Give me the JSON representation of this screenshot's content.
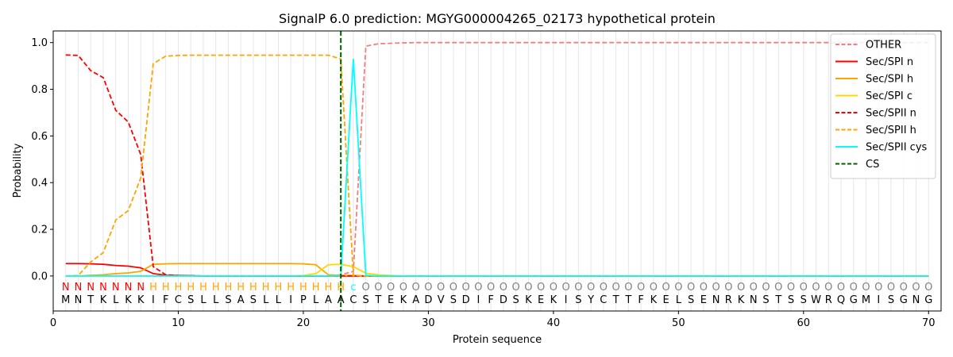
{
  "chart_data": {
    "type": "line",
    "title": "SignalP 6.0 prediction: MGYG000004265_02173 hypothetical protein",
    "xlabel": "Protein sequence",
    "ylabel": "Probability",
    "xlim": [
      0,
      71
    ],
    "ylim": [
      -0.15,
      1.05
    ],
    "xticks": [
      0,
      10,
      20,
      30,
      40,
      50,
      60,
      70
    ],
    "yticks": [
      0.0,
      0.2,
      0.4,
      0.6,
      0.8,
      1.0
    ],
    "grid": "vertical lines at each residue",
    "legend_position": "top-right",
    "sequence": "MNTKLKKIFCSLLSASLLIPLAACSTEKADVSDIFDSKEKISYCTTFKELSENRKNSTSSWRQGMISGNG",
    "prediction": "NNNNNNNHHHHHHHHHHHHHHHHcOOOOOOOOOOOOOOOOOOOOOOOOOOOOOOOOOOOOOOOOOOOOOO",
    "prediction_colors": {
      "N": "#ff0000",
      "H": "#ffa500",
      "c": "#00ffff",
      "O": "#808080"
    },
    "cleavage_site": 23,
    "series": [
      {
        "name": "OTHER",
        "color": "#f08080",
        "dash": true,
        "values": [
          0,
          0,
          0,
          0,
          0,
          0,
          0,
          0,
          0,
          0,
          0,
          0,
          0,
          0,
          0,
          0,
          0,
          0,
          0,
          0,
          0,
          0,
          0.005,
          0.02,
          0.985,
          0.995,
          0.997,
          0.999,
          1,
          1,
          1,
          1,
          1,
          1,
          1,
          1,
          1,
          1,
          1,
          1,
          1,
          1,
          1,
          1,
          1,
          1,
          1,
          1,
          1,
          1,
          1,
          1,
          1,
          1,
          1,
          1,
          1,
          1,
          1,
          1,
          1,
          1,
          1,
          1,
          1,
          1,
          1,
          1,
          1,
          1
        ]
      },
      {
        "name": "Sec/SPI n",
        "color": "#ff0000",
        "dash": false,
        "values": [
          0.053,
          0.053,
          0.052,
          0.05,
          0.045,
          0.042,
          0.035,
          0.01,
          0.003,
          0.002,
          0.001,
          0,
          0,
          0,
          0,
          0,
          0,
          0,
          0,
          0,
          0,
          0,
          0,
          0,
          0,
          0,
          0,
          0,
          0,
          0,
          0,
          0,
          0,
          0,
          0,
          0,
          0,
          0,
          0,
          0,
          0,
          0,
          0,
          0,
          0,
          0,
          0,
          0,
          0,
          0,
          0,
          0,
          0,
          0,
          0,
          0,
          0,
          0,
          0,
          0,
          0,
          0,
          0,
          0,
          0,
          0,
          0,
          0,
          0,
          0
        ]
      },
      {
        "name": "Sec/SPI h",
        "color": "#ffa500",
        "dash": false,
        "values": [
          0,
          0,
          0.003,
          0.005,
          0.01,
          0.013,
          0.02,
          0.05,
          0.052,
          0.053,
          0.053,
          0.053,
          0.053,
          0.053,
          0.053,
          0.053,
          0.053,
          0.053,
          0.053,
          0.052,
          0.048,
          0.005,
          0.003,
          0.002,
          0,
          0,
          0,
          0,
          0,
          0,
          0,
          0,
          0,
          0,
          0,
          0,
          0,
          0,
          0,
          0,
          0,
          0,
          0,
          0,
          0,
          0,
          0,
          0,
          0,
          0,
          0,
          0,
          0,
          0,
          0,
          0,
          0,
          0,
          0,
          0,
          0,
          0,
          0,
          0,
          0,
          0,
          0,
          0,
          0,
          0
        ]
      },
      {
        "name": "Sec/SPI c",
        "color": "#ffd700",
        "dash": false,
        "values": [
          0,
          0,
          0,
          0,
          0,
          0,
          0,
          0,
          0,
          0,
          0,
          0,
          0,
          0,
          0,
          0,
          0,
          0,
          0,
          0.002,
          0.01,
          0.048,
          0.05,
          0.04,
          0.012,
          0.005,
          0.002,
          0,
          0,
          0,
          0,
          0,
          0,
          0,
          0,
          0,
          0,
          0,
          0,
          0,
          0,
          0,
          0,
          0,
          0,
          0,
          0,
          0,
          0,
          0,
          0,
          0,
          0,
          0,
          0,
          0,
          0,
          0,
          0,
          0,
          0,
          0,
          0,
          0,
          0,
          0,
          0,
          0,
          0,
          0
        ]
      },
      {
        "name": "Sec/SPII n",
        "color": "#ff0000",
        "dash": true,
        "values": [
          0.947,
          0.945,
          0.88,
          0.85,
          0.71,
          0.66,
          0.52,
          0.04,
          0.005,
          0.002,
          0.001,
          0,
          0,
          0,
          0,
          0,
          0,
          0,
          0,
          0,
          0,
          0,
          0,
          0,
          0,
          0,
          0,
          0,
          0,
          0,
          0,
          0,
          0,
          0,
          0,
          0,
          0,
          0,
          0,
          0,
          0,
          0,
          0,
          0,
          0,
          0,
          0,
          0,
          0,
          0,
          0,
          0,
          0,
          0,
          0,
          0,
          0,
          0,
          0,
          0,
          0,
          0,
          0,
          0,
          0,
          0,
          0,
          0,
          0,
          0
        ]
      },
      {
        "name": "Sec/SPII h",
        "color": "#ffa500",
        "dash": true,
        "values": [
          0,
          0.002,
          0.06,
          0.1,
          0.24,
          0.28,
          0.42,
          0.91,
          0.942,
          0.945,
          0.946,
          0.946,
          0.946,
          0.946,
          0.946,
          0.946,
          0.946,
          0.946,
          0.946,
          0.946,
          0.946,
          0.946,
          0.93,
          0.003,
          0,
          0,
          0,
          0,
          0,
          0,
          0,
          0,
          0,
          0,
          0,
          0,
          0,
          0,
          0,
          0,
          0,
          0,
          0,
          0,
          0,
          0,
          0,
          0,
          0,
          0,
          0,
          0,
          0,
          0,
          0,
          0,
          0,
          0,
          0,
          0,
          0,
          0,
          0,
          0,
          0,
          0,
          0,
          0,
          0,
          0
        ]
      },
      {
        "name": "Sec/SPII cys",
        "color": "#00ffff",
        "dash": false,
        "values": [
          0,
          0,
          0,
          0,
          0,
          0,
          0,
          0,
          0,
          0,
          0,
          0,
          0,
          0,
          0,
          0,
          0,
          0,
          0,
          0,
          0,
          0,
          0.001,
          0.93,
          0.003,
          0,
          0,
          0,
          0,
          0,
          0,
          0,
          0,
          0,
          0,
          0,
          0,
          0,
          0,
          0,
          0,
          0,
          0,
          0,
          0,
          0,
          0,
          0,
          0,
          0,
          0,
          0,
          0,
          0,
          0,
          0,
          0,
          0,
          0,
          0,
          0,
          0,
          0,
          0,
          0,
          0,
          0,
          0,
          0,
          0
        ]
      },
      {
        "name": "CS",
        "color": "#006400",
        "dash": true,
        "vertical_at": 23
      }
    ]
  }
}
